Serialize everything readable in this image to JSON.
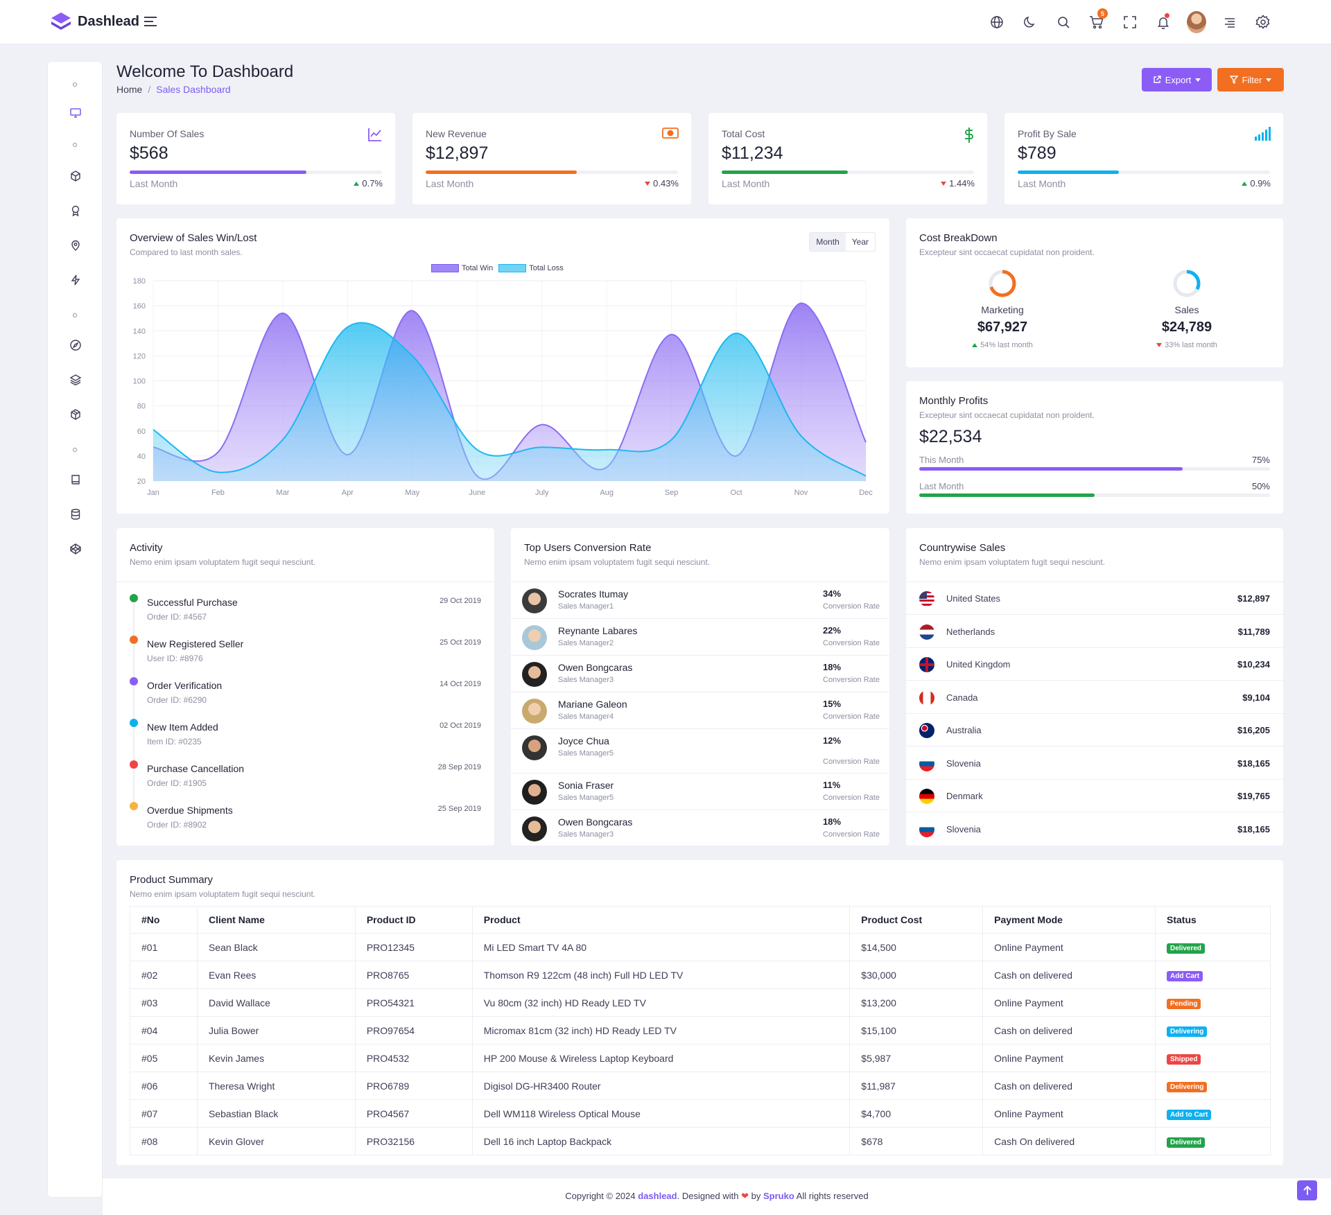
{
  "brand": {
    "name": "Dashlead"
  },
  "page": {
    "title": "Welcome To Dashboard",
    "breadcrumb_home": "Home",
    "breadcrumb_current": "Sales Dashboard"
  },
  "actions": {
    "export": "Export",
    "filter": "Filter"
  },
  "header": {
    "cart_count": "5"
  },
  "stats": [
    {
      "label": "Number Of Sales",
      "value": "$568",
      "foot": "Last Month",
      "pct": "0.7%",
      "trend": "up",
      "progress": 0.7,
      "color": "#8b5cf6",
      "icon": "line-chart-icon"
    },
    {
      "label": "New Revenue",
      "value": "$12,897",
      "foot": "Last Month",
      "pct": "0.43%",
      "trend": "down",
      "progress": 0.6,
      "color": "#f26f21",
      "icon": "money-icon"
    },
    {
      "label": "Total Cost",
      "value": "$11,234",
      "foot": "Last Month",
      "pct": "1.44%",
      "trend": "down",
      "progress": 0.5,
      "color": "#22a34b",
      "icon": "dollar-icon"
    },
    {
      "label": "Profit By Sale",
      "value": "$789",
      "foot": "Last Month",
      "pct": "0.9%",
      "trend": "up",
      "progress": 0.4,
      "color": "#0eb1ef",
      "icon": "signal-icon"
    }
  ],
  "overview": {
    "title": "Overview of Sales Win/Lost",
    "subtitle": "Compared to last month sales.",
    "seg_month": "Month",
    "seg_year": "Year"
  },
  "chart_data": {
    "type": "area",
    "categories": [
      "Jan",
      "Feb",
      "Mar",
      "Apr",
      "May",
      "June",
      "July",
      "Aug",
      "Sep",
      "Oct",
      "Nov",
      "Dec"
    ],
    "series": [
      {
        "name": "Total Win",
        "color": "#8b6cf2",
        "values": [
          47,
          43,
          154,
          41,
          156,
          24,
          65,
          31,
          137,
          40,
          162,
          51
        ]
      },
      {
        "name": "Total Loss",
        "color": "#19b9ef",
        "values": [
          61,
          27,
          53,
          143,
          120,
          45,
          47,
          45,
          53,
          138,
          56,
          24
        ]
      }
    ],
    "ylim": [
      20,
      180
    ],
    "yticks": [
      20,
      40,
      60,
      80,
      100,
      120,
      140,
      160,
      180
    ],
    "grid": true,
    "legend": "top-center"
  },
  "cost_breakdown": {
    "title": "Cost BreakDown",
    "subtitle": "Excepteur sint occaecat cupidatat non proident.",
    "items": [
      {
        "label": "Marketing",
        "value": "$67,927",
        "foot": "54% last month",
        "trend": "up",
        "share": 0.7,
        "color": "#f26f21"
      },
      {
        "label": "Sales",
        "value": "$24,789",
        "foot": "33% last month",
        "trend": "down",
        "share": 0.33,
        "color": "#0eb1ef"
      }
    ]
  },
  "monthly_profits": {
    "title": "Monthly Profits",
    "subtitle": "Excepteur sint occaecat cupidatat non proident.",
    "value": "$22,534",
    "rows": [
      {
        "label": "This Month",
        "pct": "75%",
        "progress": 0.75,
        "color": "#8b5cf6"
      },
      {
        "label": "Last Month",
        "pct": "50%",
        "progress": 0.5,
        "color": "#22a34b"
      }
    ]
  },
  "activity": {
    "title": "Activity",
    "subtitle": "Nemo enim ipsam voluptatem fugit sequi nesciunt.",
    "items": [
      {
        "title": "Successful Purchase",
        "sub": "Order ID: #4567",
        "date": "29 Oct 2019",
        "color": "#22a34b"
      },
      {
        "title": "New Registered Seller",
        "sub": "User ID: #8976",
        "date": "25 Oct 2019",
        "color": "#f26f21"
      },
      {
        "title": "Order Verification",
        "sub": "Order ID: #6290",
        "date": "14 Oct 2019",
        "color": "#8b5cf6"
      },
      {
        "title": "New Item Added",
        "sub": "Item ID: #0235",
        "date": "02 Oct 2019",
        "color": "#0eb1ef"
      },
      {
        "title": "Purchase Cancellation",
        "sub": "Order ID: #1905",
        "date": "28 Sep 2019",
        "color": "#ef4444"
      },
      {
        "title": "Overdue Shipments",
        "sub": "Order ID: #8902",
        "date": "25 Sep 2019",
        "color": "#f5b342"
      }
    ]
  },
  "conversion": {
    "title": "Top Users Conversion Rate",
    "subtitle": "Nemo enim ipsam voluptatem fugit sequi nesciunt.",
    "rate_label": "Conversion Rate",
    "users": [
      {
        "name": "Socrates Itumay",
        "role": "Sales Manager1",
        "pct": "34%"
      },
      {
        "name": "Reynante Labares",
        "role": "Sales Manager2",
        "pct": "22%"
      },
      {
        "name": "Owen Bongcaras",
        "role": "Sales Manager3",
        "pct": "18%"
      },
      {
        "name": "Mariane Galeon",
        "role": "Sales Manager4",
        "pct": "15%"
      },
      {
        "name": "Joyce Chua",
        "role": "Sales Manager5",
        "pct": "12%"
      },
      {
        "name": "Sonia Fraser",
        "role": "Sales Manager5",
        "pct": "11%"
      },
      {
        "name": "Owen Bongcaras",
        "role": "Sales Manager3",
        "pct": "18%"
      }
    ]
  },
  "countries": {
    "title": "Countrywise Sales",
    "subtitle": "Nemo enim ipsam voluptatem fugit sequi nesciunt.",
    "items": [
      {
        "name": "United States",
        "value": "$12,897",
        "flag": "us-flag"
      },
      {
        "name": "Netherlands",
        "value": "$11,789",
        "flag": "nl-flag"
      },
      {
        "name": "United Kingdom",
        "value": "$10,234",
        "flag": "uk-flag"
      },
      {
        "name": "Canada",
        "value": "$9,104",
        "flag": "ca-flag"
      },
      {
        "name": "Australia",
        "value": "$16,205",
        "flag": "au-flag"
      },
      {
        "name": "Slovenia",
        "value": "$18,165",
        "flag": "si-flag"
      },
      {
        "name": "Denmark",
        "value": "$19,765",
        "flag": "de-flag"
      },
      {
        "name": "Slovenia",
        "value": "$18,165",
        "flag": "si-flag"
      }
    ]
  },
  "products": {
    "title": "Product Summary",
    "subtitle": "Nemo enim ipsam voluptatem fugit sequi nesciunt.",
    "columns": [
      "#No",
      "Client Name",
      "Product ID",
      "Product",
      "Product Cost",
      "Payment Mode",
      "Status"
    ],
    "rows": [
      {
        "no": "#01",
        "client": "Sean Black",
        "pid": "PRO12345",
        "product": "Mi LED Smart TV 4A 80",
        "cost": "$14,500",
        "mode": "Online Payment",
        "status": "Delivered",
        "color": "#22a34b"
      },
      {
        "no": "#02",
        "client": "Evan Rees",
        "pid": "PRO8765",
        "product": "Thomson R9 122cm (48 inch) Full HD LED TV",
        "cost": "$30,000",
        "mode": "Cash on delivered",
        "status": "Add Cart",
        "color": "#8b5cf6"
      },
      {
        "no": "#03",
        "client": "David Wallace",
        "pid": "PRO54321",
        "product": "Vu 80cm (32 inch) HD Ready LED TV",
        "cost": "$13,200",
        "mode": "Online Payment",
        "status": "Pending",
        "color": "#f26f21"
      },
      {
        "no": "#04",
        "client": "Julia Bower",
        "pid": "PRO97654",
        "product": "Micromax 81cm (32 inch) HD Ready LED TV",
        "cost": "$15,100",
        "mode": "Cash on delivered",
        "status": "Delivering",
        "color": "#0eb1ef"
      },
      {
        "no": "#05",
        "client": "Kevin James",
        "pid": "PRO4532",
        "product": "HP 200 Mouse & Wireless Laptop Keyboard",
        "cost": "$5,987",
        "mode": "Online Payment",
        "status": "Shipped",
        "color": "#ef4444"
      },
      {
        "no": "#06",
        "client": "Theresa Wright",
        "pid": "PRO6789",
        "product": "Digisol DG-HR3400 Router",
        "cost": "$11,987",
        "mode": "Cash on delivered",
        "status": "Delivering",
        "color": "#f26f21"
      },
      {
        "no": "#07",
        "client": "Sebastian Black",
        "pid": "PRO4567",
        "product": "Dell WM118 Wireless Optical Mouse",
        "cost": "$4,700",
        "mode": "Online Payment",
        "status": "Add to Cart",
        "color": "#0eb1ef"
      },
      {
        "no": "#08",
        "client": "Kevin Glover",
        "pid": "PRO32156",
        "product": "Dell 16 inch Laptop Backpack",
        "cost": "$678",
        "mode": "Cash On delivered",
        "status": "Delivered",
        "color": "#22a34b"
      }
    ]
  },
  "footer": {
    "pre": "Copyright © 2024 ",
    "brand": "dashlead",
    "mid": ". Designed with ",
    "by": " by ",
    "author": "Spruko",
    "post": " All rights reserved"
  }
}
